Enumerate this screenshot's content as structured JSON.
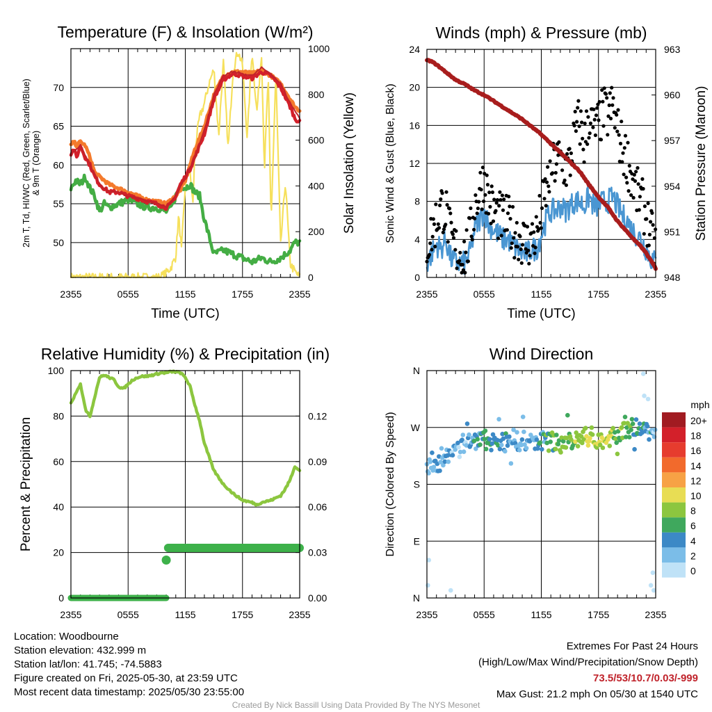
{
  "colors": {
    "temperature": "#d3202a",
    "dewpoint": "#44ad44",
    "heat_index_wind_chill": "#c0232b",
    "temp_9m": "#f47a2c",
    "insolation": "#f6e05c",
    "sonic_wind": "#4a96d2",
    "gust": "#000000",
    "pressure": "#a81d1d",
    "humidity": "#8cc63f",
    "precipitation": "#3db14a"
  },
  "chart_data": [
    {
      "id": "temp",
      "type": "line",
      "title": "Temperature (F) & Insolation (W/m²)",
      "xlabel": "Time (UTC)",
      "ylabel": "2m T, T_d, HI/WC (Red, Green, Scarlet/Blue) & 9m T (Orange)",
      "ylabel_lines": [
        "2m T, Td, HI/WC (Red, Green, Scarlet/Blue)",
        "& 9m T (Orange)"
      ],
      "y2label": "Solar Insolation (Yellow)",
      "x_ticks": [
        "2355",
        "0555",
        "1155",
        "1755",
        "2355"
      ],
      "x_range_hours": [
        0,
        24
      ],
      "ylim": [
        45.5,
        75
      ],
      "y_ticks": [
        50,
        55,
        60,
        65,
        70
      ],
      "y2lim": [
        0,
        1000
      ],
      "y2_ticks": [
        0,
        200,
        400,
        600,
        800,
        1000
      ],
      "series": [
        {
          "key": "temp_9m",
          "axis": "y",
          "x": [
            0,
            0.3,
            0.6,
            1,
            1.5,
            2,
            2.5,
            3,
            3.5,
            4,
            5,
            6,
            7,
            8,
            9,
            10,
            10.5,
            11,
            11.5,
            12,
            12.5,
            13,
            14,
            15,
            16,
            17,
            18,
            19,
            20,
            21,
            22,
            23,
            23.5,
            24
          ],
          "y": [
            62.5,
            63,
            62.5,
            63,
            62.5,
            61,
            59,
            58.5,
            58,
            57.5,
            57,
            56.5,
            56,
            55.5,
            55.3,
            55,
            55.5,
            56,
            56.8,
            58,
            60,
            62,
            65,
            69,
            71.5,
            72,
            72,
            71.8,
            72.2,
            71.5,
            70.5,
            68.5,
            67.5,
            67
          ]
        },
        {
          "key": "temperature",
          "axis": "y",
          "x": [
            0,
            0.3,
            0.6,
            1,
            1.5,
            2,
            2.5,
            3,
            3.5,
            4,
            5,
            6,
            7,
            8,
            9,
            10,
            10.5,
            11,
            11.5,
            12,
            12.5,
            13,
            14,
            15,
            16,
            17,
            18,
            19,
            20,
            21,
            22,
            23,
            23.5,
            24
          ],
          "y": [
            61.5,
            62,
            61,
            62.5,
            61,
            60,
            58.5,
            57.5,
            57,
            56.5,
            56.5,
            56,
            55.7,
            55.3,
            55,
            54.5,
            55,
            56,
            57.5,
            58.5,
            59.5,
            61,
            64,
            68.5,
            71,
            71.8,
            71.5,
            71.2,
            72,
            71.5,
            70,
            67.5,
            66,
            65.5
          ]
        },
        {
          "key": "heat_index_wind_chill",
          "axis": "y",
          "x": [
            0,
            1,
            2,
            3,
            4,
            5,
            6,
            7,
            8,
            9,
            10,
            11,
            12,
            13,
            14,
            15,
            16,
            17,
            18,
            19,
            20,
            21,
            22,
            23,
            24
          ],
          "y": [
            61.5,
            62.5,
            60,
            57.5,
            56.5,
            56.5,
            56,
            55.7,
            55.3,
            55,
            54.5,
            56,
            58.5,
            61,
            64.5,
            69,
            71.5,
            72,
            71.8,
            71.5,
            72.5,
            71.8,
            70.5,
            68,
            66
          ]
        },
        {
          "key": "dewpoint",
          "axis": "y",
          "x": [
            0,
            0.5,
            1,
            1.5,
            2,
            2.5,
            3,
            3.5,
            4,
            5,
            6,
            7,
            8,
            9,
            10,
            10.5,
            11,
            11.5,
            12,
            12.5,
            13,
            13.5,
            14,
            15,
            16,
            17,
            18,
            19,
            20,
            21,
            22,
            23,
            23.5,
            24
          ],
          "y": [
            57,
            58,
            57.5,
            58.5,
            57,
            56,
            54,
            55,
            54.5,
            55,
            55.5,
            55,
            54.5,
            54.5,
            54,
            54.5,
            56,
            57.5,
            57,
            57.5,
            56.5,
            56,
            53,
            48.5,
            49,
            48.5,
            48,
            47.5,
            48,
            47.5,
            48,
            49,
            50,
            50
          ]
        },
        {
          "key": "insolation",
          "axis": "y2",
          "x": [
            0,
            9.3,
            9.6,
            10,
            10.5,
            11,
            11.3,
            11.6,
            12,
            12.4,
            12.8,
            13,
            13.5,
            14,
            14.5,
            15,
            15.5,
            16,
            16.5,
            17,
            17.5,
            18,
            18.5,
            19,
            19.5,
            20,
            20.3,
            20.7,
            21,
            21.5,
            22,
            22.5,
            23,
            23.5,
            24
          ],
          "y": [
            0,
            0,
            8,
            20,
            45,
            90,
            270,
            120,
            400,
            500,
            320,
            560,
            700,
            760,
            850,
            910,
            620,
            940,
            560,
            900,
            990,
            930,
            610,
            990,
            720,
            980,
            470,
            880,
            240,
            890,
            140,
            420,
            60,
            25,
            0
          ]
        }
      ]
    },
    {
      "id": "wind",
      "type": "line",
      "title": "Winds (mph) & Pressure (mb)",
      "xlabel": "Time (UTC)",
      "ylabel": "Sonic Wind & Gust (Blue, Black)",
      "y2label": "Station Pressure (Maroon)",
      "x_ticks": [
        "2355",
        "0555",
        "1155",
        "1755",
        "2355"
      ],
      "x_range_hours": [
        0,
        24
      ],
      "ylim": [
        0,
        24
      ],
      "y_ticks": [
        0,
        4,
        8,
        12,
        16,
        20,
        24
      ],
      "y2lim": [
        948,
        963
      ],
      "y2_ticks": [
        948,
        951,
        954,
        957,
        960,
        963
      ],
      "series": [
        {
          "key": "sonic_wind",
          "name": "Sonic Wind",
          "axis": "y",
          "x": [
            0,
            0.5,
            1,
            1.5,
            2,
            2.5,
            3,
            3.5,
            4,
            4.5,
            5,
            5.5,
            6,
            6.5,
            7,
            7.5,
            8,
            8.5,
            9,
            9.5,
            10,
            10.5,
            11,
            11.5,
            12,
            12.5,
            13,
            13.5,
            14,
            14.5,
            15,
            15.5,
            16,
            16.5,
            17,
            17.5,
            18,
            18.5,
            19,
            19.5,
            20,
            20.5,
            21,
            21.5,
            22,
            22.5,
            23,
            23.5,
            24
          ],
          "y": [
            1.5,
            2.5,
            3.5,
            3,
            4,
            2,
            1.5,
            1.5,
            1.5,
            2.5,
            5,
            6,
            7,
            5.5,
            5,
            4.5,
            4,
            4,
            3.5,
            3,
            2.5,
            2.5,
            3,
            3,
            4.5,
            6,
            7,
            7,
            7.5,
            7,
            7.5,
            8,
            8,
            7.5,
            8.5,
            7.5,
            7.5,
            8,
            8,
            8.5,
            7.5,
            6.5,
            6,
            5,
            4.5,
            4,
            3,
            2,
            1.5
          ]
        },
        {
          "key": "gust",
          "name": "Gust",
          "axis": "y",
          "x": [
            0,
            0.5,
            1,
            1.5,
            2,
            2.5,
            3,
            3.5,
            4,
            4.5,
            5,
            5.5,
            6,
            6.5,
            7,
            7.5,
            8,
            8.5,
            9,
            9.5,
            10,
            10.5,
            11,
            11.5,
            12,
            12.5,
            13,
            13.5,
            14,
            14.5,
            15,
            15.5,
            16,
            16.5,
            17,
            17.5,
            18,
            18.5,
            19,
            19.5,
            20,
            20.5,
            21,
            21.5,
            22,
            22.5,
            23,
            23.5,
            24
          ],
          "y": [
            3.5,
            4.5,
            6,
            7.5,
            7,
            4,
            3,
            2.5,
            2.5,
            4,
            7.5,
            9,
            10.5,
            8,
            7,
            6.5,
            6,
            6,
            5,
            4.5,
            4,
            3.5,
            4,
            4.5,
            7,
            9,
            11.5,
            12,
            12.5,
            11.5,
            12,
            15,
            16.5,
            14,
            17,
            15.5,
            16,
            17.5,
            17,
            18,
            15.5,
            13.5,
            12.5,
            10.5,
            9,
            8,
            6.5,
            4.5,
            3
          ]
        },
        {
          "key": "pressure",
          "name": "Pressure",
          "axis": "y2",
          "x": [
            0,
            0.5,
            1,
            2,
            3,
            4,
            5,
            6,
            7,
            8,
            9,
            10,
            11,
            12,
            13,
            14,
            15,
            16,
            17,
            18,
            19,
            20,
            21,
            22,
            22.5,
            23,
            23.5,
            24
          ],
          "y": [
            962.3,
            962.2,
            962,
            961.5,
            961,
            960.7,
            960.3,
            960,
            959.6,
            959.2,
            958.8,
            958.4,
            957.9,
            957.4,
            956.8,
            956.2,
            955.6,
            955,
            954.1,
            953.3,
            952.6,
            951.7,
            951,
            950.3,
            950,
            949.6,
            949.1,
            948.6
          ]
        }
      ]
    },
    {
      "id": "rh",
      "type": "line",
      "title": "Relative Humidity (%) & Precipitation (in)",
      "xlabel": "",
      "ylabel": "Percent & Precipitation",
      "x_ticks": [
        "2355",
        "0555",
        "1155",
        "1755",
        "2355"
      ],
      "x_range_hours": [
        0,
        24
      ],
      "ylim": [
        0,
        100
      ],
      "y_ticks": [
        0,
        20,
        40,
        60,
        80,
        100
      ],
      "y2lim": [
        0,
        0.15
      ],
      "y2_ticks": [
        0.0,
        0.03,
        0.06,
        0.09,
        0.12
      ],
      "y2_tick_labels": [
        "0.00",
        "0.03",
        "0.06",
        "0.09",
        "0.12"
      ],
      "series": [
        {
          "key": "humidity",
          "name": "Relative Humidity",
          "axis": "y",
          "x": [
            0,
            0.3,
            0.7,
            1,
            1.3,
            1.6,
            2,
            2.3,
            2.7,
            3,
            3.5,
            4,
            4.5,
            5,
            5.5,
            6,
            6.5,
            7,
            7.5,
            8,
            8.5,
            9,
            9.5,
            10,
            10.5,
            11,
            11.5,
            12,
            12.5,
            13,
            13.5,
            14,
            15,
            16,
            17,
            18,
            19,
            19.5,
            20,
            21,
            22,
            22.5,
            23,
            23.5,
            24
          ],
          "y": [
            86,
            88,
            92,
            94,
            88,
            82,
            80,
            85,
            92,
            97,
            98,
            97,
            96,
            93,
            92,
            94,
            96,
            97,
            97.5,
            97.5,
            98,
            98.5,
            99,
            99,
            99.5,
            99.5,
            99,
            97,
            93,
            85,
            78,
            68,
            56,
            50,
            46,
            43,
            42,
            41,
            42,
            43,
            45,
            48,
            52,
            58,
            56
          ]
        },
        {
          "key": "precipitation",
          "name": "Precipitation",
          "axis": "y2",
          "x": [
            0,
            10,
            10,
            10.2,
            24
          ],
          "y": [
            0,
            0,
            0.025,
            0.033,
            0.033
          ]
        }
      ]
    },
    {
      "id": "dir",
      "type": "scatter",
      "title": "Wind Direction",
      "xlabel": "",
      "ylabel": "Direction (Colored By Speed)",
      "x_ticks": [
        "2355",
        "0555",
        "1155",
        "1755",
        "2355"
      ],
      "x_range_hours": [
        0,
        24
      ],
      "ylim": [
        0,
        360
      ],
      "y_ticks": [
        0,
        90,
        180,
        270,
        360
      ],
      "y_tick_labels": [
        "N",
        "E",
        "S",
        "W",
        "N"
      ],
      "legend": {
        "title": "mph",
        "labels": [
          "20+",
          "18",
          "16",
          "14",
          "12",
          "10",
          "8",
          "6",
          "4",
          "2",
          "0"
        ],
        "colors": [
          "#a11b21",
          "#d3202a",
          "#e63c2e",
          "#f26a2c",
          "#f7a245",
          "#e8dd54",
          "#8cc63f",
          "#3fa85d",
          "#3c89c6",
          "#7bbde8",
          "#bfe2f7"
        ]
      },
      "series_summary": {
        "mean_direction_deg_by_hour": [
          205,
          215,
          222,
          235,
          245,
          248,
          250,
          249,
          247,
          252,
          248,
          245,
          250,
          248,
          245,
          250,
          252,
          255,
          250,
          252,
          260,
          263,
          270,
          265,
          260
        ],
        "speed_mph_by_hour": [
          2,
          3,
          3,
          2,
          2,
          4,
          5,
          5,
          4,
          3,
          3,
          3,
          4,
          6,
          7,
          7,
          8,
          9,
          9,
          9,
          8,
          7,
          5,
          4,
          2
        ]
      }
    }
  ],
  "footer": {
    "location": "Location: Woodbourne",
    "elevation": "Station elevation: 432.999 m",
    "latlon": "Station lat/lon: 41.745; -74.5883",
    "created": "Figure created on Fri, 2025-05-30, at 23:59 UTC",
    "recent": "Most recent data timestamp: 2025/05/30 23:55:00",
    "extremes_title": "Extremes For Past 24 Hours",
    "extremes_subtitle": "(High/Low/Max Wind/Precipitation/Snow Depth)",
    "extremes_values": "73.5/53/10.7/0.03/-999",
    "max_gust": "Max Gust: 21.2 mph On 05/30 at 1540 UTC",
    "credit": "Created By Nick Bassill Using Data Provided By The NYS Mesonet"
  }
}
